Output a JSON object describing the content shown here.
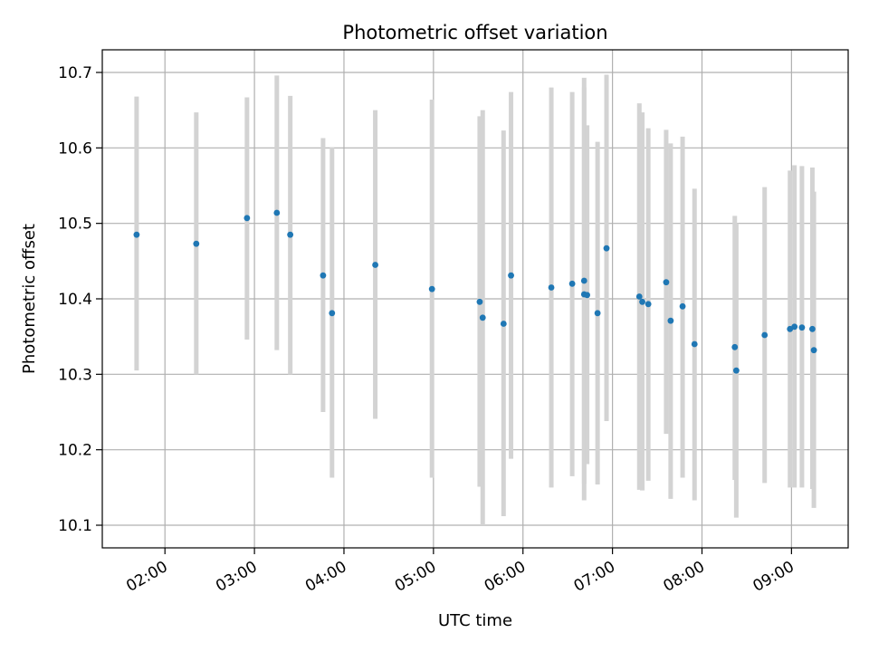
{
  "chart_data": {
    "type": "scatter",
    "title": "Photometric offset variation",
    "xlabel": "UTC time",
    "ylabel": "Photometric offset",
    "x_unit": "hours UTC",
    "xlim": [
      "01:18",
      "09:38"
    ],
    "ylim": [
      10.07,
      10.73
    ],
    "x_ticks": [
      "02:00",
      "03:00",
      "04:00",
      "05:00",
      "06:00",
      "07:00",
      "08:00",
      "09:00"
    ],
    "y_ticks": [
      10.1,
      10.2,
      10.3,
      10.4,
      10.5,
      10.6,
      10.7
    ],
    "grid": true,
    "colors": {
      "point": "#1f77b4",
      "errorbar": "#d3d3d3",
      "grid": "#b0b0b0"
    },
    "points": [
      {
        "t": "01:41",
        "y": 10.485,
        "lo": 10.305,
        "hi": 10.668
      },
      {
        "t": "02:21",
        "y": 10.473,
        "lo": 10.3,
        "hi": 10.647
      },
      {
        "t": "02:55",
        "y": 10.507,
        "lo": 10.346,
        "hi": 10.667
      },
      {
        "t": "03:15",
        "y": 10.514,
        "lo": 10.332,
        "hi": 10.696
      },
      {
        "t": "03:24",
        "y": 10.485,
        "lo": 10.3,
        "hi": 10.669
      },
      {
        "t": "03:46",
        "y": 10.431,
        "lo": 10.25,
        "hi": 10.613
      },
      {
        "t": "03:52",
        "y": 10.381,
        "lo": 10.163,
        "hi": 10.601
      },
      {
        "t": "04:21",
        "y": 10.445,
        "lo": 10.241,
        "hi": 10.65
      },
      {
        "t": "04:59",
        "y": 10.413,
        "lo": 10.163,
        "hi": 10.664
      },
      {
        "t": "05:31",
        "y": 10.396,
        "lo": 10.151,
        "hi": 10.642
      },
      {
        "t": "05:33",
        "y": 10.375,
        "lo": 10.1,
        "hi": 10.65
      },
      {
        "t": "05:47",
        "y": 10.367,
        "lo": 10.112,
        "hi": 10.623
      },
      {
        "t": "05:52",
        "y": 10.431,
        "lo": 10.188,
        "hi": 10.674
      },
      {
        "t": "06:19",
        "y": 10.415,
        "lo": 10.15,
        "hi": 10.68
      },
      {
        "t": "06:33",
        "y": 10.42,
        "lo": 10.165,
        "hi": 10.674
      },
      {
        "t": "06:41",
        "y": 10.424,
        "lo": 10.155,
        "hi": 10.693
      },
      {
        "t": "06:41",
        "y": 10.406,
        "lo": 10.133,
        "hi": 10.68
      },
      {
        "t": "06:43",
        "y": 10.405,
        "lo": 10.181,
        "hi": 10.63
      },
      {
        "t": "06:50",
        "y": 10.381,
        "lo": 10.154,
        "hi": 10.608
      },
      {
        "t": "06:56",
        "y": 10.467,
        "lo": 10.238,
        "hi": 10.697
      },
      {
        "t": "07:18",
        "y": 10.403,
        "lo": 10.147,
        "hi": 10.659
      },
      {
        "t": "07:20",
        "y": 10.396,
        "lo": 10.146,
        "hi": 10.647
      },
      {
        "t": "07:24",
        "y": 10.393,
        "lo": 10.159,
        "hi": 10.626
      },
      {
        "t": "07:36",
        "y": 10.422,
        "lo": 10.221,
        "hi": 10.624
      },
      {
        "t": "07:39",
        "y": 10.371,
        "lo": 10.135,
        "hi": 10.606
      },
      {
        "t": "07:47",
        "y": 10.39,
        "lo": 10.163,
        "hi": 10.615
      },
      {
        "t": "07:55",
        "y": 10.34,
        "lo": 10.133,
        "hi": 10.546
      },
      {
        "t": "08:22",
        "y": 10.336,
        "lo": 10.16,
        "hi": 10.51
      },
      {
        "t": "08:23",
        "y": 10.305,
        "lo": 10.11,
        "hi": 10.5
      },
      {
        "t": "08:42",
        "y": 10.352,
        "lo": 10.156,
        "hi": 10.548
      },
      {
        "t": "08:59",
        "y": 10.36,
        "lo": 10.15,
        "hi": 10.57
      },
      {
        "t": "09:02",
        "y": 10.363,
        "lo": 10.15,
        "hi": 10.577
      },
      {
        "t": "09:07",
        "y": 10.362,
        "lo": 10.15,
        "hi": 10.576
      },
      {
        "t": "09:14",
        "y": 10.36,
        "lo": 10.148,
        "hi": 10.574
      },
      {
        "t": "09:15",
        "y": 10.332,
        "lo": 10.123,
        "hi": 10.542
      }
    ]
  }
}
